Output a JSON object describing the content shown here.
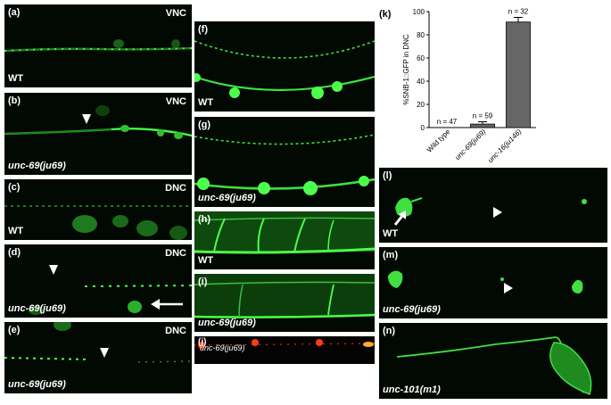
{
  "panels": {
    "a": {
      "label": "(a)",
      "region": "VNC",
      "genotype": "WT"
    },
    "b": {
      "label": "(b)",
      "region": "VNC",
      "genotype": "unc-69(ju69)"
    },
    "c": {
      "label": "(c)",
      "region": "DNC",
      "genotype": "WT"
    },
    "d": {
      "label": "(d)",
      "region": "DNC",
      "genotype": "unc-69(ju69)"
    },
    "e": {
      "label": "(e)",
      "region": "DNC",
      "genotype": "unc-69(ju69)"
    },
    "f": {
      "label": "(f)",
      "genotype": "WT"
    },
    "g": {
      "label": "(g)",
      "genotype": "unc-69(ju69)"
    },
    "h": {
      "label": "(h)",
      "genotype": "WT"
    },
    "i": {
      "label": "(i)",
      "genotype": "unc-69(ju69)"
    },
    "j": {
      "label": "(j)",
      "genotype": "unc-69(ju69)"
    },
    "l": {
      "label": "(l)",
      "genotype": "WT"
    },
    "m": {
      "label": "(m)",
      "genotype": "unc-69(ju69)"
    },
    "n": {
      "label": "(n)",
      "genotype": "unc-101(m1)"
    }
  },
  "colors": {
    "fluor_green": "#3fe03f",
    "fluor_red": "#ff3a1a",
    "background": "#020802",
    "bar_fill": "#666666"
  },
  "chart_data": {
    "type": "bar",
    "panel_label": "(k)",
    "categories": [
      "Wild type",
      "unc-69(ju69)",
      "unc-16(ju146)"
    ],
    "values": [
      0,
      3,
      91
    ],
    "errors": [
      0,
      2,
      4
    ],
    "n_labels": [
      "n = 47",
      "n = 59",
      "n = 32"
    ],
    "ylabel": "%SNB-1::GFP in DNC",
    "ylim": [
      0,
      100
    ],
    "yticks": [
      0,
      20,
      40,
      60,
      80,
      100
    ],
    "grid": false
  }
}
